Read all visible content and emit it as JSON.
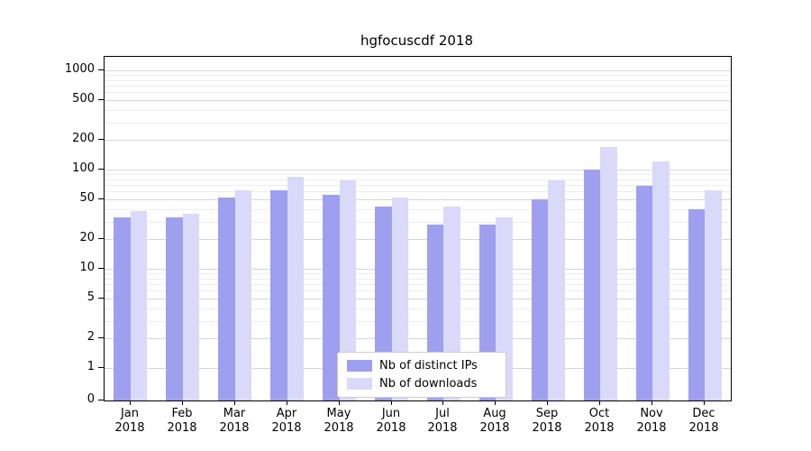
{
  "chart_data": {
    "type": "bar",
    "title": "hgfocuscdf 2018",
    "year_label": "2018",
    "categories": [
      "Jan",
      "Feb",
      "Mar",
      "Apr",
      "May",
      "Jun",
      "Jul",
      "Aug",
      "Sep",
      "Oct",
      "Nov",
      "Dec"
    ],
    "series": [
      {
        "name": "Nb of distinct IPs",
        "color": "#9f9fef",
        "values": [
          33,
          33,
          52,
          62,
          56,
          42,
          28,
          28,
          50,
          100,
          68,
          40
        ]
      },
      {
        "name": "Nb of downloads",
        "color": "#d9d9f9",
        "values": [
          38,
          36,
          62,
          84,
          78,
          52,
          42,
          33,
          78,
          170,
          120,
          62
        ]
      }
    ],
    "yticks": [
      0,
      1,
      2,
      5,
      10,
      20,
      50,
      100,
      200,
      500,
      1000
    ],
    "scale": "symlog",
    "grid": true,
    "legend_position": "lower center"
  }
}
